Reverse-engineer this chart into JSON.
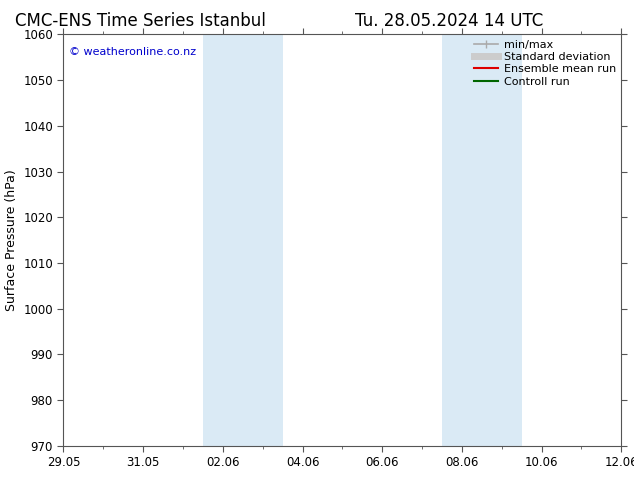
{
  "title": "CMC-ENS Time Series Istanbul",
  "title_right": "Tu. 28.05.2024 14 UTC",
  "ylabel": "Surface Pressure (hPa)",
  "ylim": [
    970,
    1060
  ],
  "yticks": [
    970,
    980,
    990,
    1000,
    1010,
    1020,
    1030,
    1040,
    1050,
    1060
  ],
  "x_start_day": 0,
  "x_end_day": 14,
  "xtick_labels": [
    "29.05",
    "31.05",
    "02.06",
    "04.06",
    "06.06",
    "08.06",
    "10.06",
    "12.06"
  ],
  "xtick_positions_days": [
    0,
    2,
    4,
    6,
    8,
    10,
    12,
    14
  ],
  "shaded_bands": [
    {
      "x_start_day": 3.5,
      "x_end_day": 5.5
    },
    {
      "x_start_day": 9.5,
      "x_end_day": 11.5
    }
  ],
  "shade_color": "#daeaf5",
  "copyright_text": "© weatheronline.co.nz",
  "copyright_color": "#0000cc",
  "legend_entries": [
    {
      "label": "min/max",
      "color": "#aaaaaa",
      "linewidth": 1.2,
      "linestyle": "-",
      "marker": "|"
    },
    {
      "label": "Standard deviation",
      "color": "#cccccc",
      "linewidth": 5,
      "linestyle": "-"
    },
    {
      "label": "Ensemble mean run",
      "color": "#dd0000",
      "linewidth": 1.5,
      "linestyle": "-"
    },
    {
      "label": "Controll run",
      "color": "#006600",
      "linewidth": 1.5,
      "linestyle": "-"
    }
  ],
  "background_color": "#ffffff",
  "spine_color": "#555555",
  "title_fontsize": 12,
  "axis_label_fontsize": 9,
  "tick_fontsize": 8.5,
  "legend_fontsize": 8,
  "copyright_fontsize": 8
}
